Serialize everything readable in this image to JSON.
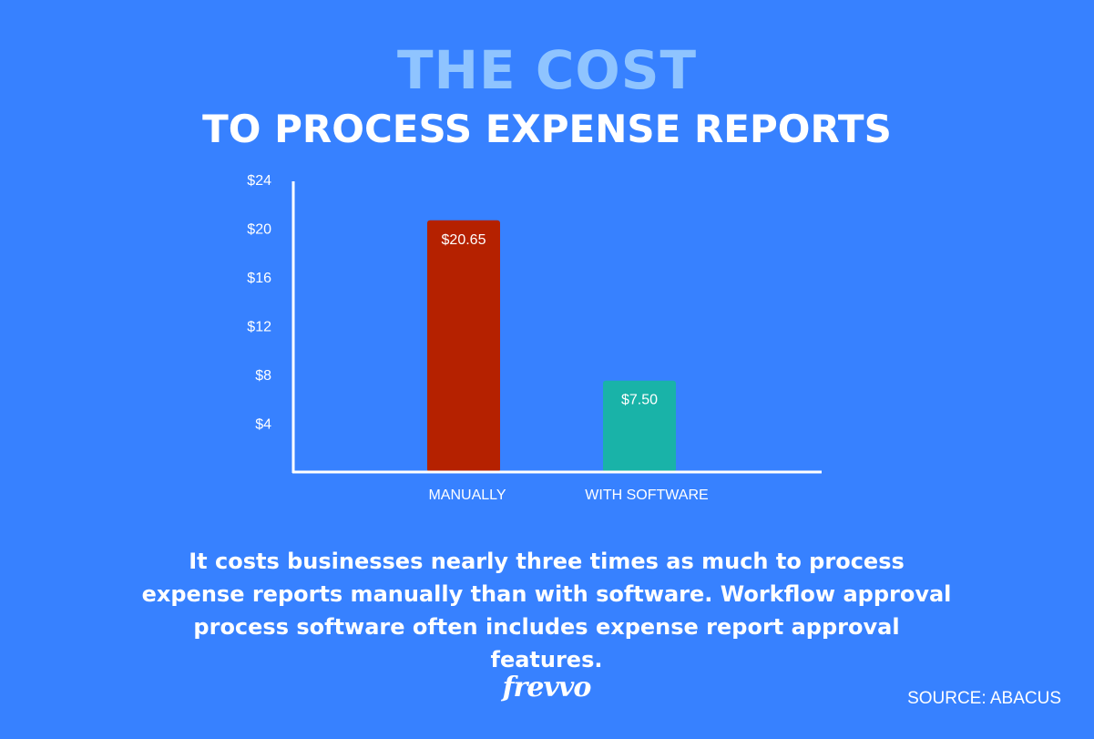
{
  "title_top": "THE COST",
  "title_sub": "TO PROCESS EXPENSE REPORTS",
  "chart_data": {
    "type": "bar",
    "categories": [
      "MANUALLY",
      "WITH SOFTWARE"
    ],
    "values": [
      20.65,
      7.5
    ],
    "value_labels": [
      "$20.65",
      "$7.50"
    ],
    "colors": [
      "#b52100",
      "#19b3a8"
    ],
    "yticks": [
      4,
      8,
      12,
      16,
      20,
      24
    ],
    "ytick_labels": [
      "$4",
      "$8",
      "$12",
      "$16",
      "$20",
      "$24"
    ],
    "ylim": [
      0,
      24
    ],
    "grid": false,
    "xlabel": "",
    "ylabel": ""
  },
  "caption": "It costs businesses nearly three times as much to process expense reports manually than with software. Workflow approval process software often includes expense report approval features.",
  "logo_text": "frevvo",
  "source": "SOURCE: ABACUS"
}
